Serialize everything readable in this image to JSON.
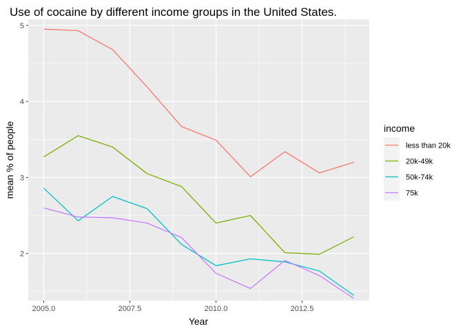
{
  "chart_data": {
    "type": "line",
    "title": "Use of cocaine by different income groups in the United States.",
    "xlabel": "Year",
    "ylabel": "mean % of people",
    "x": [
      2005,
      2006,
      2007,
      2008,
      2009,
      2010,
      2011,
      2012,
      2013,
      2014
    ],
    "xlim": [
      2004.55,
      2014.45
    ],
    "ylim": [
      1.38,
      5.08
    ],
    "x_ticks": [
      2005,
      2007.5,
      2010,
      2012.5
    ],
    "x_tick_labels": [
      "2005.0",
      "2007.5",
      "2010.0",
      "2012.5"
    ],
    "y_ticks": [
      2,
      3,
      4,
      5
    ],
    "y_tick_labels": [
      "2",
      "3",
      "4",
      "5"
    ],
    "grid": true,
    "legend": {
      "title": "income",
      "position": "right"
    },
    "series": [
      {
        "name": "less than 20k",
        "color": "#F8766D",
        "values": [
          4.95,
          4.93,
          4.68,
          4.19,
          3.67,
          3.49,
          3.01,
          3.34,
          3.06,
          3.2
        ]
      },
      {
        "name": "20k-49k",
        "color": "#7CAE00",
        "values": [
          3.27,
          3.55,
          3.4,
          3.05,
          2.88,
          2.4,
          2.5,
          2.01,
          1.99,
          2.22
        ]
      },
      {
        "name": "50k-74k",
        "color": "#00BFC4",
        "values": [
          2.86,
          2.43,
          2.75,
          2.59,
          2.12,
          1.84,
          1.93,
          1.89,
          1.77,
          1.45
        ]
      },
      {
        "name": "75k",
        "color": "#C77CFF",
        "values": [
          2.6,
          2.48,
          2.47,
          2.4,
          2.21,
          1.74,
          1.54,
          1.91,
          1.71,
          1.41
        ]
      }
    ]
  }
}
